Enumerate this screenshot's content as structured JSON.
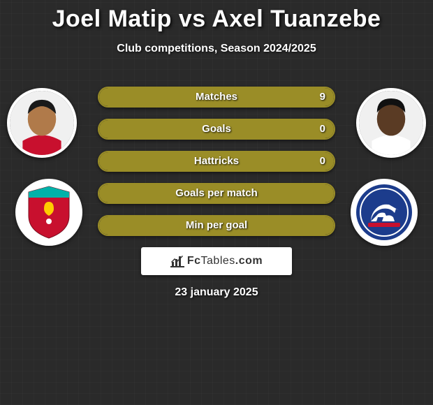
{
  "title": {
    "player1": "Joel Matip",
    "vs": "vs",
    "player2": "Axel Tuanzebe",
    "color": "#ffffff",
    "fontsize": 34
  },
  "subtitle": {
    "text": "Club competitions, Season 2024/2025",
    "fontsize": 16
  },
  "date": "23 january 2025",
  "colors": {
    "background": "#2a2a2a",
    "accent": "#9a8d27",
    "portrait_border": "#ffffff",
    "badge_bg": "#ffffff"
  },
  "portraits": {
    "left": {
      "skin": "#b07a4a",
      "jersey": "#c8102e",
      "bg": "#f0f0f0"
    },
    "right": {
      "skin": "#5a3b24",
      "jersey": "#ffffff",
      "bg": "#f0f0f0"
    }
  },
  "clubs": {
    "left": {
      "name": "Liverpool",
      "primary": "#c8102e",
      "secondary": "#00b2a9"
    },
    "right": {
      "name": "Ipswich Town",
      "primary": "#1c3c8c",
      "secondary": "#c8102e"
    }
  },
  "stats": [
    {
      "label": "Matches",
      "left_share": 0.0,
      "right_share": 1.0,
      "right_value": "9",
      "show_right_value": true
    },
    {
      "label": "Goals",
      "left_share": 0.5,
      "right_share": 0.5,
      "right_value": "0",
      "show_right_value": true
    },
    {
      "label": "Hattricks",
      "left_share": 0.5,
      "right_share": 0.5,
      "right_value": "0",
      "show_right_value": true
    },
    {
      "label": "Goals per match",
      "left_share": 0.5,
      "right_share": 0.5,
      "right_value": "",
      "show_right_value": false
    },
    {
      "label": "Min per goal",
      "left_share": 0.5,
      "right_share": 0.5,
      "right_value": "",
      "show_right_value": false
    }
  ],
  "brand": {
    "domain_pre": "Fc",
    "domain_mid": "Tables",
    "domain_suf": ".com",
    "icon_color": "#333333"
  }
}
